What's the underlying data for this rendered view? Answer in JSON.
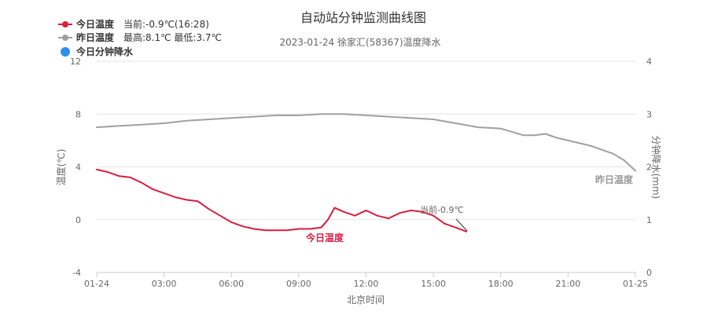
{
  "title": "自动站分钟监测曲线图",
  "subtitle": "2023-01-24 徐家汇(58367)温度降水",
  "legend": {
    "today_temp": "今日温度",
    "today_note": "当前:-0.9℃(16:28)",
    "yesterday_temp": "昨日温度",
    "yesterday_note": "最高:8.1℃ 最低:3.7℃",
    "today_precip": "今日分钟降水"
  },
  "colors": {
    "today": "#d81e3f",
    "yesterday": "#a0a0a0",
    "precip": "#2f8ff0",
    "grid": "#e6e6e6",
    "axis": "#cccccc"
  },
  "labels": {
    "today_series": "今日温度",
    "yesterday_series": "昨日温度",
    "current_label": "当前-0.9℃"
  },
  "chart_data": {
    "type": "line",
    "title": "自动站分钟监测曲线图",
    "subtitle": "2023-01-24 徐家汇(58367)温度降水",
    "xlabel": "北京时间",
    "ylabel_left": "温度(℃)",
    "ylabel_right": "分钟降水(mm)",
    "x_ticks": [
      "01-24",
      "03:00",
      "06:00",
      "09:00",
      "12:00",
      "15:00",
      "18:00",
      "21:00",
      "01-25"
    ],
    "xlim_hours": [
      0,
      24
    ],
    "y_left": {
      "min": -4,
      "max": 12,
      "ticks": [
        "-4",
        "0",
        "4",
        "8",
        "12"
      ]
    },
    "y_right": {
      "min": 0,
      "max": 4,
      "ticks": [
        "0",
        "1",
        "2",
        "3",
        "4"
      ]
    },
    "grid": true,
    "legend_position": "top-left",
    "series": [
      {
        "name": "今日温度",
        "x_hours": [
          0.0,
          0.5,
          1.0,
          1.5,
          2.0,
          2.5,
          3.0,
          3.5,
          4.0,
          4.5,
          5.0,
          5.5,
          6.0,
          6.5,
          7.0,
          7.5,
          8.0,
          8.5,
          9.0,
          9.5,
          10.0,
          10.3,
          10.6,
          11.0,
          11.5,
          12.0,
          12.5,
          13.0,
          13.5,
          14.0,
          14.5,
          15.0,
          15.5,
          16.0,
          16.47
        ],
        "values": [
          3.8,
          3.6,
          3.3,
          3.2,
          2.8,
          2.3,
          2.0,
          1.7,
          1.5,
          1.4,
          0.8,
          0.3,
          -0.2,
          -0.5,
          -0.7,
          -0.8,
          -0.8,
          -0.8,
          -0.7,
          -0.7,
          -0.6,
          0.0,
          0.9,
          0.6,
          0.3,
          0.7,
          0.3,
          0.1,
          0.5,
          0.7,
          0.6,
          0.3,
          -0.3,
          -0.6,
          -0.9
        ]
      },
      {
        "name": "昨日温度",
        "x_hours": [
          0,
          1,
          2,
          3,
          4,
          5,
          6,
          7,
          8,
          9,
          10,
          11,
          12,
          13,
          14,
          15,
          16,
          17,
          18,
          19,
          19.5,
          20,
          20.5,
          21,
          22,
          23,
          23.5,
          24
        ],
        "values": [
          7.0,
          7.1,
          7.2,
          7.3,
          7.5,
          7.6,
          7.7,
          7.8,
          7.9,
          7.9,
          8.0,
          8.0,
          7.9,
          7.8,
          7.7,
          7.6,
          7.3,
          7.0,
          6.9,
          6.4,
          6.4,
          6.5,
          6.2,
          6.0,
          5.6,
          5.0,
          4.5,
          3.7
        ]
      }
    ]
  }
}
